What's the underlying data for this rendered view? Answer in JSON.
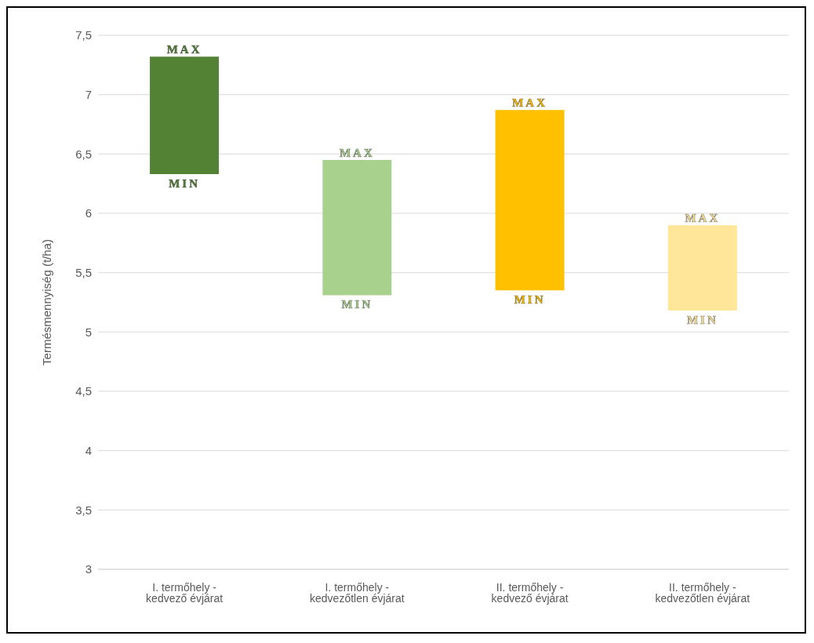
{
  "chart_data": {
    "type": "bar",
    "ylabel": "Termésmennyiség (t/ha)",
    "categories": [
      "I. termőhely - kedvező évjárat",
      "I. termőhely - kedvezőtlen évjárat",
      "II. termőhely - kedvező évjárat",
      "II. termőhely - kedvezőtlen évjárat"
    ],
    "base": [
      6.33,
      5.31,
      5.35,
      5.18
    ],
    "values": [
      0.99,
      1.14,
      1.52,
      0.72
    ],
    "colors": [
      "#548235",
      "#a9d18e",
      "#ffc000",
      "#ffe699"
    ],
    "ylim": [
      3,
      7.5
    ],
    "yticks": [
      3,
      {
        "value": 3.5,
        "label": "3,5"
      },
      4,
      {
        "value": 4.5,
        "label": "4,5"
      },
      5,
      {
        "value": 5.5,
        "label": "5,5"
      },
      6,
      {
        "value": 6.5,
        "label": "6,5"
      },
      7,
      {
        "value": 7.5,
        "label": "7,5"
      }
    ],
    "grid": "y",
    "legend": false,
    "annotations": [
      {
        "text": "MAX",
        "x": "I. termőhely - kedvező évjárat",
        "y": 7.32
      },
      {
        "text": "MIN",
        "x": "I. termőhely - kedvező évjárat",
        "y": 6.33
      },
      {
        "text": "MAX",
        "x": "I. termőhely - kedvezőtlen évjárat",
        "y": 6.45
      },
      {
        "text": "MIN",
        "x": "I. termőhely - kedvezőtlen évjárat",
        "y": 5.31
      },
      {
        "text": "MAX",
        "x": "II. termőhely - kedvező évjárat",
        "y": 6.87
      },
      {
        "text": "MIN",
        "x": "II. termőhely - kedvező évjárat",
        "y": 5.35
      },
      {
        "text": "MAX",
        "x": "II. termőhely - kedvezőtlen évjárat",
        "y": 5.9
      },
      {
        "text": "MIN",
        "x": "II. termőhely - kedvezőtlen évjárat",
        "y": 5.18
      }
    ]
  }
}
